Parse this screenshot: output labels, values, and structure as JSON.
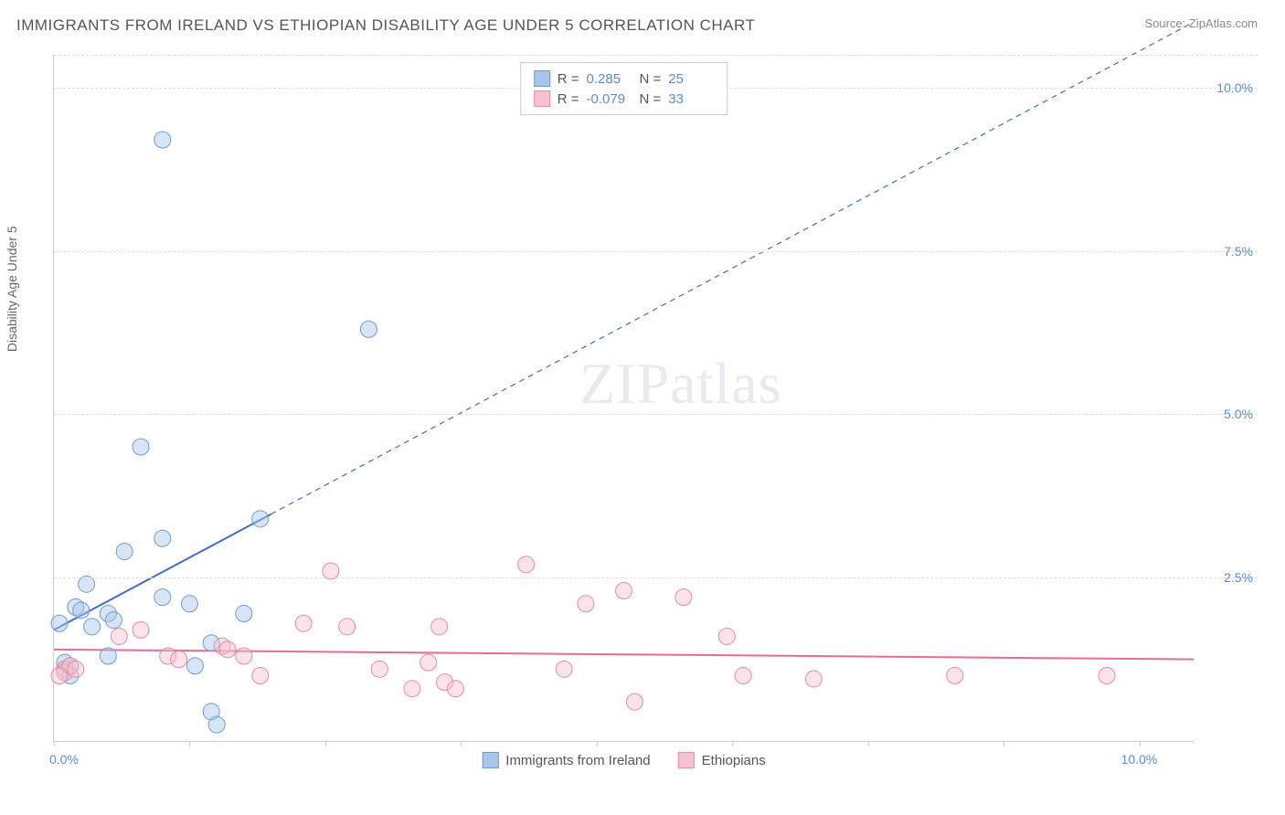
{
  "title": "IMMIGRANTS FROM IRELAND VS ETHIOPIAN DISABILITY AGE UNDER 5 CORRELATION CHART",
  "source": "Source: ZipAtlas.com",
  "y_axis_label": "Disability Age Under 5",
  "watermark": "ZIPatlas",
  "chart": {
    "type": "scatter",
    "xlim": [
      0,
      10.5
    ],
    "ylim": [
      0,
      10.5
    ],
    "x_ticks": [
      0,
      1.25,
      2.5,
      3.75,
      5.0,
      6.25,
      7.5,
      8.75,
      10.0
    ],
    "x_tick_labels": {
      "0": "0.0%",
      "10": "10.0%"
    },
    "y_ticks": [
      2.5,
      5.0,
      7.5,
      10.0
    ],
    "y_tick_labels": [
      "2.5%",
      "5.0%",
      "7.5%",
      "10.0%"
    ],
    "background_color": "#ffffff",
    "grid_color": "#dddddd",
    "marker_radius": 9,
    "marker_opacity": 0.45,
    "series": [
      {
        "name": "Immigrants from Ireland",
        "color_fill": "#a8c6ea",
        "color_stroke": "#6d9dd8",
        "R": "0.285",
        "N": "25",
        "trend": {
          "x1": 0.0,
          "y1": 1.7,
          "x2": 10.5,
          "y2": 11.0,
          "solid_until_x": 2.0,
          "color": "#3b6fc9",
          "width": 2
        },
        "points": [
          [
            0.05,
            1.8
          ],
          [
            0.1,
            1.1
          ],
          [
            0.1,
            1.2
          ],
          [
            0.15,
            1.15
          ],
          [
            0.15,
            1.0
          ],
          [
            0.2,
            2.05
          ],
          [
            0.25,
            2.0
          ],
          [
            0.3,
            2.4
          ],
          [
            0.35,
            1.75
          ],
          [
            0.5,
            1.95
          ],
          [
            0.5,
            1.3
          ],
          [
            0.55,
            1.85
          ],
          [
            0.65,
            2.9
          ],
          [
            0.8,
            4.5
          ],
          [
            1.0,
            9.2
          ],
          [
            1.0,
            2.2
          ],
          [
            1.0,
            3.1
          ],
          [
            1.25,
            2.1
          ],
          [
            1.3,
            1.15
          ],
          [
            1.45,
            1.5
          ],
          [
            1.45,
            0.45
          ],
          [
            1.5,
            0.25
          ],
          [
            1.75,
            1.95
          ],
          [
            1.9,
            3.4
          ],
          [
            2.9,
            6.3
          ]
        ]
      },
      {
        "name": "Ethiopians",
        "color_fill": "#f4c2cf",
        "color_stroke": "#e88ba5",
        "R": "-0.079",
        "N": "33",
        "trend": {
          "x1": 0.0,
          "y1": 1.4,
          "x2": 10.5,
          "y2": 1.25,
          "color": "#e76b93",
          "width": 2
        },
        "points": [
          [
            0.1,
            1.1
          ],
          [
            0.1,
            1.05
          ],
          [
            0.15,
            1.15
          ],
          [
            0.2,
            1.1
          ],
          [
            0.6,
            1.6
          ],
          [
            0.8,
            1.7
          ],
          [
            1.05,
            1.3
          ],
          [
            1.15,
            1.25
          ],
          [
            1.55,
            1.45
          ],
          [
            1.6,
            1.4
          ],
          [
            1.75,
            1.3
          ],
          [
            1.9,
            1.0
          ],
          [
            2.3,
            1.8
          ],
          [
            2.55,
            2.6
          ],
          [
            2.7,
            1.75
          ],
          [
            3.0,
            1.1
          ],
          [
            3.3,
            0.8
          ],
          [
            3.45,
            1.2
          ],
          [
            3.55,
            1.75
          ],
          [
            3.6,
            0.9
          ],
          [
            3.7,
            0.8
          ],
          [
            4.35,
            2.7
          ],
          [
            4.7,
            1.1
          ],
          [
            4.9,
            2.1
          ],
          [
            5.25,
            2.3
          ],
          [
            5.35,
            0.6
          ],
          [
            5.8,
            2.2
          ],
          [
            6.2,
            1.6
          ],
          [
            6.35,
            1.0
          ],
          [
            7.0,
            0.95
          ],
          [
            8.3,
            1.0
          ],
          [
            9.7,
            1.0
          ],
          [
            0.05,
            1.0
          ]
        ]
      }
    ]
  },
  "colors": {
    "title": "#555555",
    "source": "#888888",
    "axis_label": "#666666",
    "tick_label": "#5b8dd6"
  }
}
